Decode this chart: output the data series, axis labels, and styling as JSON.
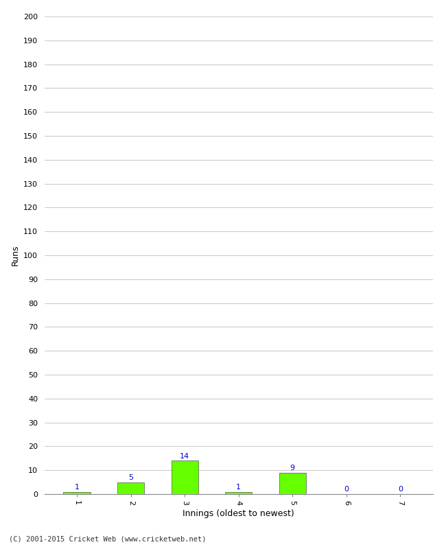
{
  "xlabel": "Innings (oldest to newest)",
  "ylabel": "Runs",
  "categories": [
    "1",
    "2",
    "3",
    "4",
    "5",
    "6",
    "7"
  ],
  "values": [
    1,
    5,
    14,
    1,
    9,
    0,
    0
  ],
  "bar_color": "#66ff00",
  "bar_edge_color": "#555555",
  "label_color": "#0000cc",
  "ylim": [
    0,
    200
  ],
  "yticks": [
    0,
    10,
    20,
    30,
    40,
    50,
    60,
    70,
    80,
    90,
    100,
    110,
    120,
    130,
    140,
    150,
    160,
    170,
    180,
    190,
    200
  ],
  "background_color": "#ffffff",
  "grid_color": "#cccccc",
  "footer": "(C) 2001-2015 Cricket Web (www.cricketweb.net)",
  "label_fontsize": 8,
  "axis_fontsize": 8,
  "footer_fontsize": 7.5
}
